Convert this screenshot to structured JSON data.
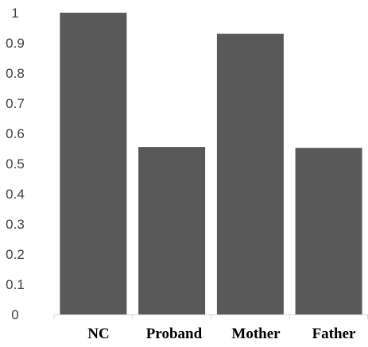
{
  "chart_data": {
    "type": "bar",
    "title": "",
    "xlabel": "",
    "ylabel": "",
    "categories": [
      "NC",
      "Proband",
      "Mother",
      "Father"
    ],
    "values": [
      1.0,
      0.555,
      0.93,
      0.552
    ],
    "ylim": [
      0,
      1
    ],
    "yticks": [
      "0",
      "0.1",
      "0.2",
      "0.3",
      "0.4",
      "0.5",
      "0.6",
      "0.7",
      "0.8",
      "0.9",
      "1"
    ],
    "grid": false,
    "legend": "none",
    "bar_color": "#595959",
    "axis_color": "#d9d9d9"
  }
}
